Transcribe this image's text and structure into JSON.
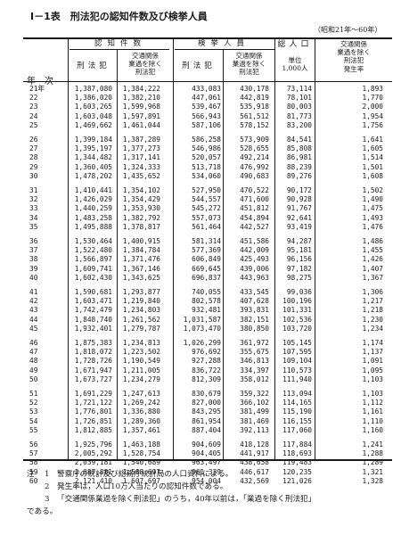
{
  "title": "Ⅰ－1表　刑法犯の認知件数及び検挙人員",
  "period_note": "（昭和21年～60年）",
  "header": {
    "year_col": "年次",
    "group_recognized": "認知件数",
    "group_arrested": "検挙人員",
    "col_total_penal_1": "刑法犯",
    "col_excl_traffic_1": [
      "交通関係",
      "業過を除く",
      "刑法犯"
    ],
    "col_total_penal_2": "刑法犯",
    "col_excl_traffic_2": [
      "交通関係",
      "業過を除く",
      "刑法犯"
    ],
    "col_population": [
      "総人口",
      "単位",
      "1,000人"
    ],
    "col_rate": [
      "交通関係",
      "業過を除く",
      "刑法犯",
      "発生率"
    ]
  },
  "rows": [
    [
      "21年",
      "1,387,080",
      "1,384,222",
      "433,083",
      "430,178",
      "73,114",
      "1,893"
    ],
    [
      "22",
      "1,386,020",
      "1,382,210",
      "447,061",
      "442,819",
      "78,101",
      "1,770"
    ],
    [
      "23",
      "1,603,265",
      "1,599,968",
      "539,467",
      "535,918",
      "80,003",
      "2,000"
    ],
    [
      "24",
      "1,603,048",
      "1,597,891",
      "566,943",
      "561,512",
      "81,773",
      "1,954"
    ],
    [
      "25",
      "1,469,662",
      "1,461,044",
      "587,106",
      "578,152",
      "83,200",
      "1,756"
    ],
    [
      "26",
      "1,399,184",
      "1,387,289",
      "586,258",
      "573,909",
      "84,541",
      "1,641"
    ],
    [
      "27",
      "1,395,197",
      "1,377,273",
      "546,986",
      "528,655",
      "85,808",
      "1,605"
    ],
    [
      "28",
      "1,344,482",
      "1,317,141",
      "520,057",
      "492,214",
      "86,981",
      "1,514"
    ],
    [
      "29",
      "1,360,405",
      "1,324,333",
      "513,718",
      "476,992",
      "88,239",
      "1,501"
    ],
    [
      "30",
      "1,478,202",
      "1,435,652",
      "534,060",
      "490,683",
      "89,276",
      "1,608"
    ],
    [
      "31",
      "1,410,441",
      "1,354,102",
      "527,950",
      "470,522",
      "90,172",
      "1,502"
    ],
    [
      "32",
      "1,426,029",
      "1,354,429",
      "544,557",
      "471,600",
      "90,928",
      "1,490"
    ],
    [
      "33",
      "1,440,259",
      "1,353,930",
      "545,272",
      "451,812",
      "91,767",
      "1,475"
    ],
    [
      "34",
      "1,483,258",
      "1,382,792",
      "557,073",
      "454,894",
      "92,641",
      "1,493"
    ],
    [
      "35",
      "1,495,888",
      "1,378,817",
      "561,464",
      "442,527",
      "93,419",
      "1,476"
    ],
    [
      "36",
      "1,530,464",
      "1,400,915",
      "581,314",
      "451,586",
      "94,287",
      "1,486"
    ],
    [
      "37",
      "1,522,480",
      "1,384,784",
      "577,369",
      "442,009",
      "95,181",
      "1,455"
    ],
    [
      "38",
      "1,566,897",
      "1,371,476",
      "606,849",
      "425,493",
      "96,156",
      "1,426"
    ],
    [
      "39",
      "1,609,741",
      "1,367,146",
      "669,645",
      "439,006",
      "97,182",
      "1,407"
    ],
    [
      "40",
      "1,602,430",
      "1,343,625",
      "696,837",
      "443,963",
      "98,275",
      "1,367"
    ],
    [
      "41",
      "1,590,681",
      "1,293,877",
      "740,055",
      "433,545",
      "99,036",
      "1,306"
    ],
    [
      "42",
      "1,603,471",
      "1,219,840",
      "802,578",
      "407,628",
      "100,196",
      "1,217"
    ],
    [
      "43",
      "1,742,479",
      "1,234,803",
      "932,481",
      "393,831",
      "101,331",
      "1,218"
    ],
    [
      "44",
      "1,848,740",
      "1,261,562",
      "1,031,587",
      "382,151",
      "102,536",
      "1,230"
    ],
    [
      "45",
      "1,932,401",
      "1,279,787",
      "1,073,470",
      "380,850",
      "103,720",
      "1,234"
    ],
    [
      "46",
      "1,875,383",
      "1,234,813",
      "1,026,299",
      "361,972",
      "105,145",
      "1,174"
    ],
    [
      "47",
      "1,818,072",
      "1,223,502",
      "976,692",
      "355,675",
      "107,595",
      "1,137"
    ],
    [
      "48",
      "1,728,726",
      "1,190,549",
      "927,288",
      "346,813",
      "109,104",
      "1,091"
    ],
    [
      "49",
      "1,671,947",
      "1,211,005",
      "836,722",
      "334,397",
      "110,573",
      "1,095"
    ],
    [
      "50",
      "1,673,727",
      "1,234,279",
      "812,309",
      "358,012",
      "111,940",
      "1,103"
    ],
    [
      "51",
      "1,691,229",
      "1,247,613",
      "830,679",
      "359,322",
      "113,094",
      "1,103"
    ],
    [
      "52",
      "1,721,122",
      "1,269,242",
      "827,000",
      "366,102",
      "114,165",
      "1,112"
    ],
    [
      "53",
      "1,776,801",
      "1,336,880",
      "843,295",
      "381,499",
      "115,190",
      "1,161"
    ],
    [
      "54",
      "1,726,851",
      "1,289,360",
      "861,954",
      "381,469",
      "116,155",
      "1,110"
    ],
    [
      "55",
      "1,812,885",
      "1,357,461",
      "887,404",
      "392,113",
      "117,060",
      "1,160"
    ],
    [
      "56",
      "1,925,796",
      "1,463,188",
      "904,609",
      "418,128",
      "117,884",
      "1,241"
    ],
    [
      "57",
      "2,005,292",
      "1,528,754",
      "904,405",
      "441,917",
      "118,693",
      "1,288"
    ],
    [
      "58",
      "2,039,181",
      "1,540,689",
      "963,497",
      "438,658",
      "119,483",
      "1,289"
    ],
    [
      "59",
      "2,087,881",
      "1,588,697",
      "961,339",
      "446,617",
      "120,235",
      "1,321"
    ],
    [
      "60",
      "2,121,410",
      "1,607,697",
      "954,004",
      "432,569",
      "121,026",
      "1,328"
    ]
  ],
  "notes": [
    {
      "label": "注",
      "num": "1",
      "text": "警察庁の統計及び総務庁統計局の人口資料による。"
    },
    {
      "label": "",
      "num": "2",
      "text": "発生率は，人口10万人当たりの認知件数である。"
    },
    {
      "label": "",
      "num": "3",
      "text": "「交通関係業過を除く刑法犯」のうち，40年以前は，「業過を除く刑法犯」",
      "cont": "である。"
    }
  ]
}
